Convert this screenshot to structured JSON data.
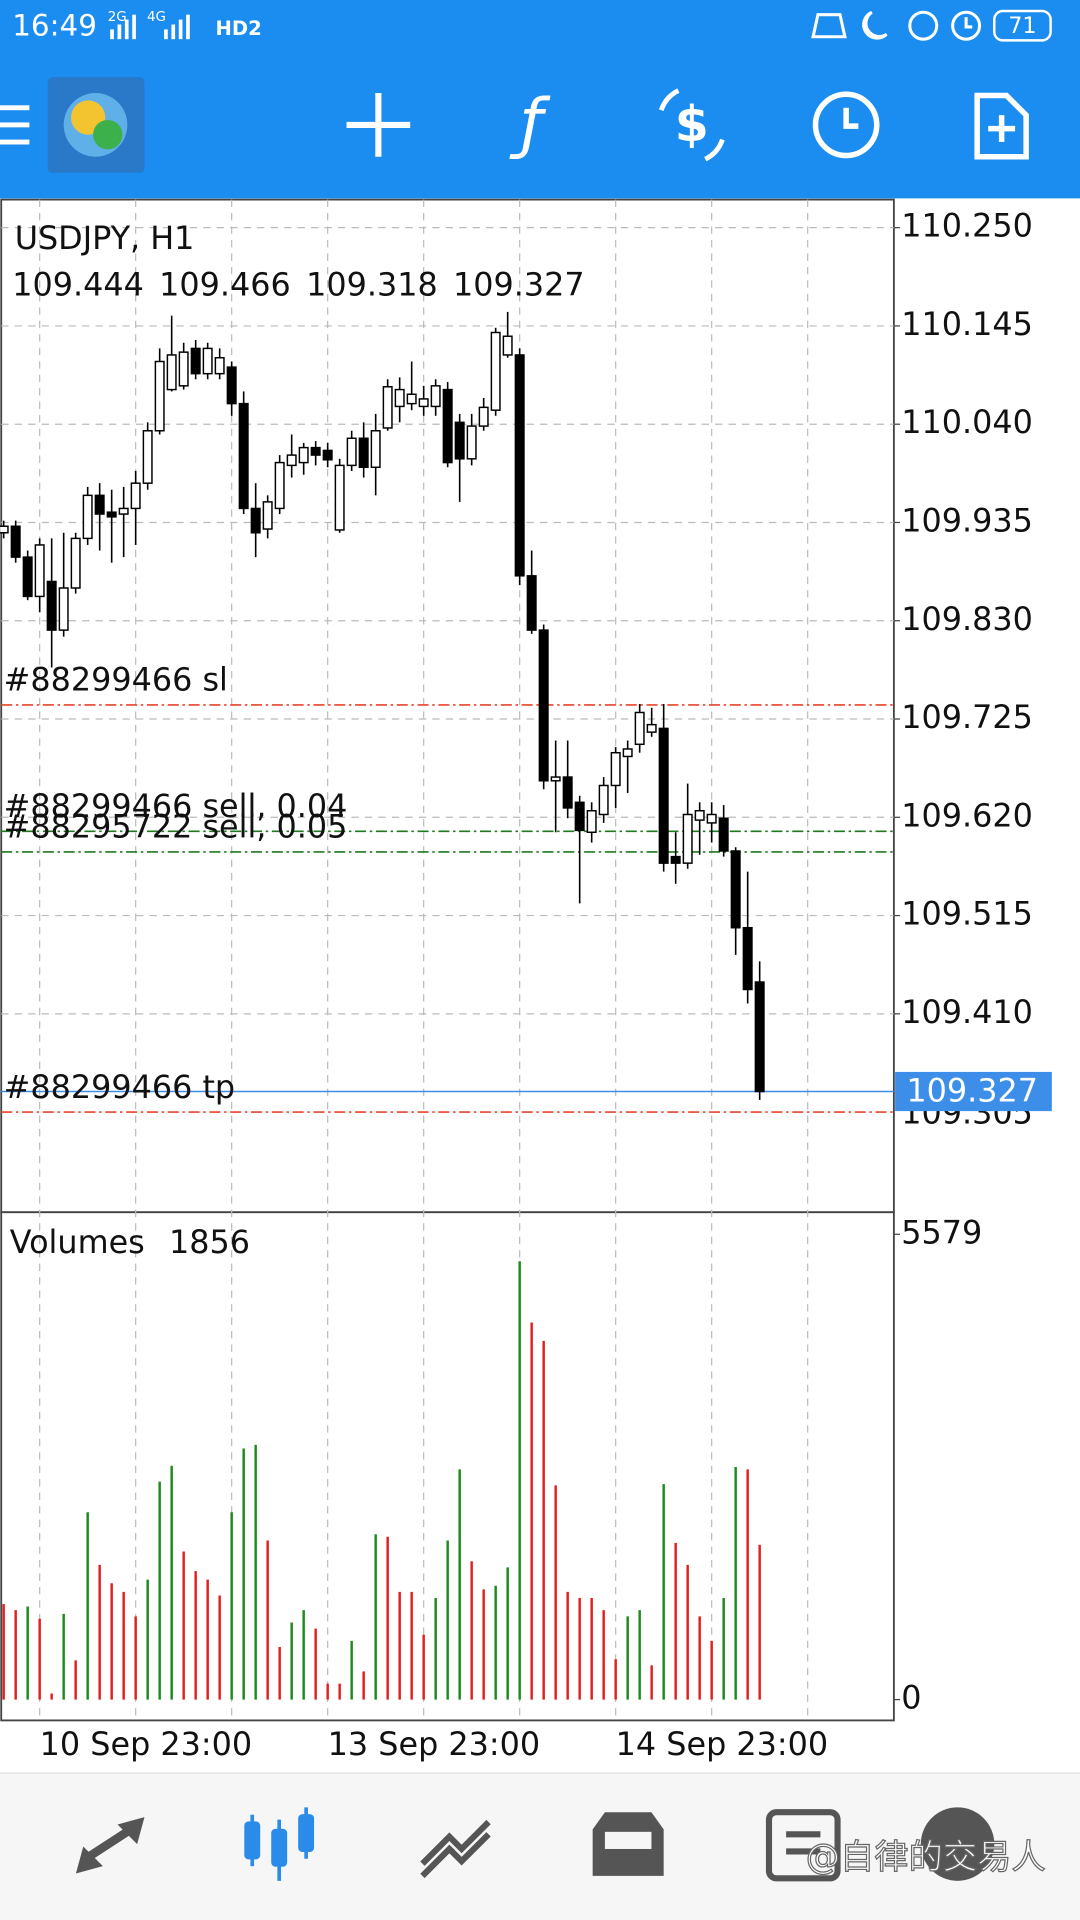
{
  "status_bar": {
    "time": "16:49",
    "network": [
      "2G",
      "4G",
      "HD2"
    ],
    "battery": "71"
  },
  "chart_data": [
    {
      "type": "candlestick",
      "title": "USDJPY, H1",
      "categories": [
        null,
        null,
        null,
        "10 Sep 23:00",
        null,
        null,
        null,
        null,
        null,
        null,
        null,
        null,
        null,
        null,
        null,
        null,
        null,
        null,
        null,
        null,
        null,
        null,
        null,
        null,
        null,
        null,
        null,
        "13 Sep 23:00",
        null,
        null,
        null,
        null,
        null,
        null,
        null,
        null,
        null,
        null,
        null,
        null,
        null,
        null,
        null,
        null,
        null,
        null,
        null,
        null,
        null,
        null,
        null,
        "14 Sep 23:00",
        null,
        null,
        null,
        null,
        null,
        null,
        null,
        null,
        null,
        null,
        null,
        null
      ],
      "open": [
        109.924,
        109.931,
        109.898,
        109.856,
        109.872,
        109.82,
        109.865,
        109.918,
        109.964,
        109.946,
        109.944,
        109.95,
        109.977,
        110.033,
        110.077,
        110.081,
        110.121,
        110.094,
        110.094,
        110.101,
        110.062,
        109.95,
        109.928,
        109.95,
        109.996,
        109.999,
        110.015,
        110.012,
        109.927,
        109.996,
        110.025,
        109.994,
        110.036,
        110.059,
        110.062,
        110.059,
        110.059,
        110.077,
        110.042,
        110.003,
        110.038,
        110.055,
        110.114,
        110.114,
        109.878,
        109.82,
        109.659,
        109.663,
        109.636,
        109.604,
        109.623,
        109.654,
        109.685,
        109.698,
        109.711,
        109.715,
        109.578,
        109.571,
        109.617,
        109.614,
        109.619,
        109.584,
        109.502,
        109.444
      ],
      "high": [
        109.937,
        109.937,
        109.905,
        109.918,
        109.918,
        109.924,
        109.924,
        109.973,
        109.977,
        109.97,
        109.973,
        109.99,
        110.042,
        110.121,
        110.156,
        110.127,
        110.13,
        110.127,
        110.121,
        110.107,
        110.075,
        109.977,
        109.964,
        110.007,
        110.029,
        110.02,
        110.022,
        110.02,
        110.003,
        110.033,
        110.042,
        110.051,
        110.088,
        110.09,
        110.107,
        110.081,
        110.088,
        110.085,
        110.051,
        110.051,
        110.068,
        110.143,
        110.16,
        110.121,
        109.905,
        109.826,
        109.702,
        109.702,
        109.643,
        109.636,
        109.663,
        109.695,
        109.702,
        109.741,
        109.737,
        109.741,
        109.604,
        109.656,
        109.636,
        109.636,
        109.633,
        109.588,
        109.562,
        109.466
      ],
      "low": [
        109.918,
        109.892,
        109.852,
        109.839,
        109.78,
        109.813,
        109.859,
        109.911,
        109.905,
        109.892,
        109.898,
        109.911,
        109.97,
        110.029,
        110.075,
        110.077,
        110.088,
        110.088,
        110.088,
        110.049,
        109.944,
        109.898,
        109.918,
        109.944,
        109.983,
        109.986,
        109.996,
        109.994,
        109.924,
        109.99,
        109.983,
        109.964,
        110.033,
        110.042,
        110.055,
        110.049,
        110.049,
        109.994,
        109.957,
        109.996,
        110.033,
        110.049,
        110.111,
        109.868,
        109.816,
        109.65,
        109.604,
        109.619,
        109.528,
        109.593,
        109.614,
        109.63,
        109.646,
        109.689,
        109.706,
        109.562,
        109.549,
        109.565,
        109.58,
        109.593,
        109.578,
        109.473,
        109.421,
        109.318
      ],
      "close": [
        109.931,
        109.898,
        109.856,
        109.911,
        109.82,
        109.865,
        109.918,
        109.964,
        109.944,
        109.941,
        109.95,
        109.977,
        110.033,
        110.107,
        110.114,
        110.117,
        110.094,
        110.121,
        110.111,
        110.062,
        109.95,
        109.924,
        109.957,
        109.999,
        110.007,
        110.015,
        110.007,
        110.002,
        109.996,
        110.025,
        109.994,
        110.033,
        110.08,
        110.077,
        110.072,
        110.067,
        110.081,
        109.999,
        110.003,
        110.038,
        110.058,
        110.138,
        110.134,
        109.878,
        109.82,
        109.659,
        109.663,
        109.63,
        109.606,
        109.627,
        109.654,
        109.689,
        109.693,
        109.732,
        109.719,
        109.571,
        109.571,
        109.623,
        109.627,
        109.623,
        109.584,
        109.502,
        109.436,
        109.327
      ],
      "ylim": [
        109.198,
        110.28
      ],
      "yticks": [
        {
          "value": 110.25,
          "label": "110.250"
        },
        110.145,
        {
          "value": 110.04,
          "label": "110.040"
        },
        109.935,
        {
          "value": 109.83,
          "label": "109.830"
        },
        109.725,
        {
          "value": 109.62,
          "label": "109.620"
        },
        109.515,
        {
          "value": 109.41,
          "label": "109.410"
        }
      ],
      "grid": true,
      "up_color": "#ffffff",
      "down_color": "#000000",
      "last_price_color": "#3d8ee8",
      "levels": [
        {
          "label": "#88299466 sl",
          "value": 109.74,
          "color": "#e8452a",
          "show_price": false
        },
        {
          "label": "#88295722 sell, 0.05",
          "value": 109.583,
          "color": "#1e7a1e",
          "show_price": false
        },
        {
          "label": "#88299466 sell, 0.04",
          "value": 109.605,
          "color": "#1e7a1e",
          "show_price": false
        },
        {
          "label": "#88299466 tp",
          "value": 109.305,
          "color": "#e8452a",
          "show_price": true
        }
      ]
    },
    {
      "type": "bar",
      "title": "Volumes",
      "values": [
        1145,
        1072,
        1116,
        969,
        73,
        1028,
        470,
        2246,
        1615,
        1395,
        1292,
        998,
        1439,
        2613,
        2804,
        1776,
        1541,
        1439,
        1248,
        2246,
        3010,
        3054,
        1908,
        631,
        925,
        1072,
        851,
        191,
        191,
        705,
        338,
        1982,
        1952,
        1292,
        1292,
        778,
        1218,
        1908,
        2760,
        1659,
        1321,
        1365,
        1585,
        5256,
        4522,
        4301,
        2569,
        1292,
        1218,
        1218,
        1072,
        484,
        998,
        1072,
        411,
        2584,
        1879,
        1615,
        998,
        705,
        1218,
        2789,
        2760,
        1856
      ],
      "ylim": [
        0,
        5579
      ],
      "yticks": [
        0,
        5579
      ],
      "up_color": "#1e8a1e",
      "down_color": "#e02020"
    }
  ],
  "watermark": "@自律的交易人"
}
